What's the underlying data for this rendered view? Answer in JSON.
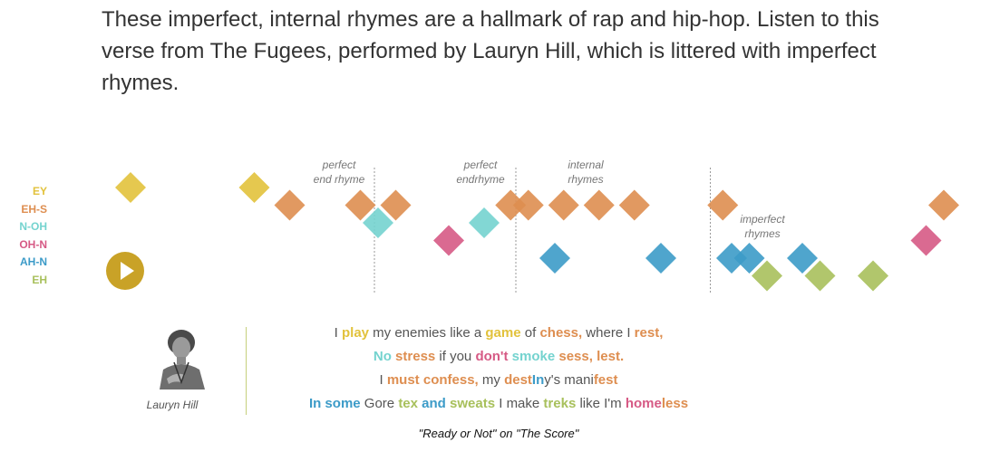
{
  "intro_text": "These imperfect, internal rhymes are a hallmark of rap and hip-hop. Listen to this verse from The Fugees, performed by Lauryn Hill, which is littered with imperfect rhymes.",
  "colors": {
    "EY": "#e2c23c",
    "EH-S": "#de8e50",
    "N-OH": "#74d3cf",
    "OH-N": "#d65a85",
    "AH-N": "#3c9bc8",
    "EH": "#a8c05c"
  },
  "legend": [
    {
      "label": "EY",
      "color": "#e2c23c"
    },
    {
      "label": "EH-S",
      "color": "#de8e50"
    },
    {
      "label": "N-OH",
      "color": "#74d3cf"
    },
    {
      "label": "OH-N",
      "color": "#d65a85"
    },
    {
      "label": "AH-N",
      "color": "#3c9bc8"
    },
    {
      "label": "EH",
      "color": "#a8c05c"
    }
  ],
  "play_icon": "play-icon",
  "annotations": [
    {
      "lines": [
        "perfect",
        "end rhyme"
      ]
    },
    {
      "lines": [
        "perfect",
        "endrhyme"
      ]
    },
    {
      "lines": [
        "internal",
        "rhymes"
      ]
    },
    {
      "lines": [
        "imperfect",
        "rhymes"
      ]
    }
  ],
  "rhyme_sequence": [
    {
      "beat": 1.0,
      "sound": "EY"
    },
    {
      "beat": 4.5,
      "sound": "EY"
    },
    {
      "beat": 5.5,
      "sound": "EH-S"
    },
    {
      "beat": 7.5,
      "sound": "EH-S"
    },
    {
      "beat": 8.5,
      "sound": "EH-S"
    },
    {
      "beat": 8.0,
      "sound": "N-OH"
    },
    {
      "beat": 10.0,
      "sound": "OH-N"
    },
    {
      "beat": 11.0,
      "sound": "N-OH"
    },
    {
      "beat": 11.75,
      "sound": "EH-S"
    },
    {
      "beat": 12.25,
      "sound": "EH-S"
    },
    {
      "beat": 13.25,
      "sound": "EH-S"
    },
    {
      "beat": 13.0,
      "sound": "AH-N"
    },
    {
      "beat": 14.25,
      "sound": "EH-S"
    },
    {
      "beat": 15.25,
      "sound": "EH-S"
    },
    {
      "beat": 16.0,
      "sound": "AH-N"
    },
    {
      "beat": 17.75,
      "sound": "EH-S"
    },
    {
      "beat": 18.0,
      "sound": "AH-N"
    },
    {
      "beat": 18.5,
      "sound": "AH-N"
    },
    {
      "beat": 19.0,
      "sound": "EH"
    },
    {
      "beat": 20.0,
      "sound": "AH-N"
    },
    {
      "beat": 20.5,
      "sound": "EH"
    },
    {
      "beat": 22.0,
      "sound": "EH"
    },
    {
      "beat": 23.5,
      "sound": "OH-N"
    },
    {
      "beat": 24.0,
      "sound": "EH-S"
    }
  ],
  "marker_beats": [
    7.5,
    11.5,
    17.0
  ],
  "artist": {
    "name": "Lauryn Hill"
  },
  "lyrics": [
    [
      {
        "t": "I "
      },
      {
        "t": "play",
        "c": "EY"
      },
      {
        "t": " my enemies like a "
      },
      {
        "t": "game",
        "c": "EY"
      },
      {
        "t": " of "
      },
      {
        "t": "chess,",
        "c": "EH-S"
      },
      {
        "t": " where I "
      },
      {
        "t": "rest,",
        "c": "EH-S"
      }
    ],
    [
      {
        "t": "No",
        "c": "N-OH"
      },
      {
        "t": " "
      },
      {
        "t": "stress",
        "c": "EH-S"
      },
      {
        "t": " if you "
      },
      {
        "t": "don't",
        "c": "OH-N"
      },
      {
        "t": " "
      },
      {
        "t": "smoke",
        "c": "N-OH"
      },
      {
        "t": " "
      },
      {
        "t": "sess,",
        "c": "EH-S"
      },
      {
        "t": " "
      },
      {
        "t": "lest.",
        "c": "EH-S"
      }
    ],
    [
      {
        "t": "I "
      },
      {
        "t": "must",
        "c": "EH-S"
      },
      {
        "t": " "
      },
      {
        "t": "con",
        "c": "EH-S"
      },
      {
        "t": "fess,",
        "c": "EH-S"
      },
      {
        "t": " my "
      },
      {
        "t": "dest",
        "c": "EH-S"
      },
      {
        "t": "In",
        "c": "AH-N"
      },
      {
        "t": "y's mani"
      },
      {
        "t": "fest",
        "c": "EH-S"
      }
    ],
    [
      {
        "t": "In some",
        "c": "AH-N"
      },
      {
        "t": " Gore "
      },
      {
        "t": "tex",
        "c": "EH"
      },
      {
        "t": " "
      },
      {
        "t": "and",
        "c": "AH-N"
      },
      {
        "t": " "
      },
      {
        "t": "sweats",
        "c": "EH"
      },
      {
        "t": " I make "
      },
      {
        "t": "treks",
        "c": "EH"
      },
      {
        "t": " like I'm "
      },
      {
        "t": "home",
        "c": "OH-N"
      },
      {
        "t": "less",
        "c": "EH-S"
      }
    ]
  ],
  "caption": "\"Ready or Not\" on \"The Score\""
}
